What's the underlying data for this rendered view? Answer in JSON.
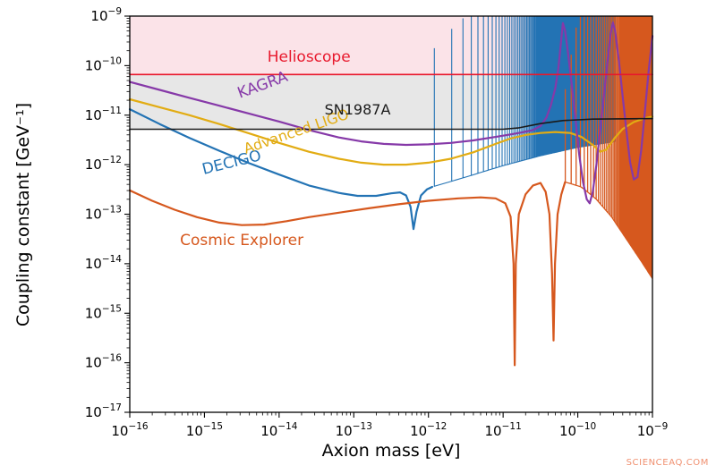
{
  "watermark": "SCIENCEAQ.COM",
  "chart_data": {
    "type": "line",
    "title": "",
    "xlabel": "Axion mass [eV]",
    "ylabel": "Coupling constant [GeV⁻¹]",
    "x_scale": "log",
    "y_scale": "log",
    "x_log_range": [
      -16,
      -9
    ],
    "y_log_range": [
      -17,
      -9
    ],
    "x_tick_exponents": [
      -16,
      -15,
      -14,
      -13,
      -12,
      -11,
      -10,
      -9
    ],
    "y_tick_exponents": [
      -9,
      -10,
      -11,
      -12,
      -13,
      -14,
      -15,
      -16,
      -17
    ],
    "grid": false,
    "legend_position": "inline-labels",
    "regions": [
      {
        "id": "helioscope-excluded",
        "fill": "#fbe3e8",
        "top_ly": -9,
        "bottom_ly": -10.18
      },
      {
        "id": "sn1987a-excluded",
        "fill": "#e7e7e7",
        "top_ly": -10.18,
        "bottom_ref": "sn1987a"
      }
    ],
    "series": [
      {
        "id": "decigo",
        "name": "DECIGO",
        "color": "#2373b4",
        "width": 2.2,
        "label": {
          "text": "DECIGO",
          "lx": -14.62,
          "ly": -12.05,
          "rotate": -14,
          "size": 17
        },
        "points": [
          [
            -16,
            -10.88
          ],
          [
            -15.6,
            -11.18
          ],
          [
            -15.2,
            -11.46
          ],
          [
            -14.8,
            -11.72
          ],
          [
            -14.4,
            -11.97
          ],
          [
            -14.0,
            -12.2
          ],
          [
            -13.6,
            -12.42
          ],
          [
            -13.2,
            -12.57
          ],
          [
            -12.95,
            -12.63
          ],
          [
            -12.7,
            -12.63
          ],
          [
            -12.5,
            -12.58
          ],
          [
            -12.38,
            -12.56
          ],
          [
            -12.3,
            -12.62
          ],
          [
            -12.24,
            -12.85
          ],
          [
            -12.2,
            -13.3
          ],
          [
            -12.16,
            -12.95
          ],
          [
            -12.1,
            -12.62
          ],
          [
            -12.02,
            -12.5
          ],
          [
            -11.95,
            -12.45
          ]
        ],
        "oscillation": {
          "m_start": 1.2e-12,
          "dm": 8.5e-13,
          "m_end": 3.2e-10,
          "width": 1.1,
          "bottom_env": [
            [
              -11.95,
              -12.45
            ],
            [
              -11.5,
              -12.25
            ],
            [
              -11.0,
              -12.02
            ],
            [
              -10.5,
              -11.82
            ],
            [
              -10.0,
              -11.65
            ],
            [
              -9.4,
              -11.5
            ]
          ],
          "top_env": [
            [
              -11.95,
              -9.7
            ],
            [
              -11.75,
              -9.35
            ],
            [
              -11.55,
              -9.05
            ],
            [
              -11.4,
              -9.0
            ],
            [
              -9.0,
              -9.0
            ]
          ]
        }
      },
      {
        "id": "cosmic-explorer",
        "name": "Cosmic Explorer",
        "color": "#d6581e",
        "width": 2.2,
        "label": {
          "text": "Cosmic Explorer",
          "lx": -14.5,
          "ly": -13.62,
          "rotate": 0,
          "size": 17
        },
        "points": [
          [
            -16,
            -12.52
          ],
          [
            -15.7,
            -12.73
          ],
          [
            -15.4,
            -12.91
          ],
          [
            -15.1,
            -13.06
          ],
          [
            -14.8,
            -13.17
          ],
          [
            -14.5,
            -13.22
          ],
          [
            -14.2,
            -13.21
          ],
          [
            -13.9,
            -13.14
          ],
          [
            -13.6,
            -13.06
          ],
          [
            -13.2,
            -12.97
          ],
          [
            -12.8,
            -12.88
          ],
          [
            -12.4,
            -12.8
          ],
          [
            -12.0,
            -12.73
          ],
          [
            -11.6,
            -12.68
          ],
          [
            -11.3,
            -12.66
          ],
          [
            -11.1,
            -12.68
          ],
          [
            -10.97,
            -12.78
          ],
          [
            -10.9,
            -13.05
          ],
          [
            -10.86,
            -14.0
          ],
          [
            -10.845,
            -16.05
          ],
          [
            -10.83,
            -14.0
          ],
          [
            -10.79,
            -13.0
          ],
          [
            -10.7,
            -12.6
          ],
          [
            -10.6,
            -12.42
          ],
          [
            -10.5,
            -12.37
          ],
          [
            -10.43,
            -12.55
          ],
          [
            -10.38,
            -13.0
          ],
          [
            -10.345,
            -14.2
          ],
          [
            -10.325,
            -15.55
          ],
          [
            -10.305,
            -14.0
          ],
          [
            -10.27,
            -13.0
          ],
          [
            -10.22,
            -12.6
          ],
          [
            -10.17,
            -12.35
          ]
        ],
        "oscillation": {
          "m_start": 6.8e-11,
          "dm": 1.35e-11,
          "m_end": 9.9e-10,
          "width": 1.3,
          "bottom_env": [
            [
              -10.17,
              -12.35
            ],
            [
              -9.95,
              -12.45
            ],
            [
              -9.75,
              -12.7
            ],
            [
              -9.55,
              -13.05
            ],
            [
              -9.35,
              -13.5
            ],
            [
              -9.15,
              -13.95
            ],
            [
              -9.0,
              -14.3
            ]
          ],
          "top_env": [
            [
              -10.17,
              -10.5
            ],
            [
              -10.08,
              -9.7
            ],
            [
              -10.0,
              -9.05
            ],
            [
              -9.95,
              -9.0
            ],
            [
              -9.0,
              -9.0
            ]
          ]
        }
      },
      {
        "id": "advanced-ligo",
        "name": "Advanced LIGO",
        "color": "#e2ac13",
        "width": 2.2,
        "label": {
          "text": "Advanced LIGO",
          "lx": -13.75,
          "ly": -11.42,
          "rotate": -19,
          "size": 16
        },
        "points": [
          [
            -16,
            -10.68
          ],
          [
            -15.6,
            -10.84
          ],
          [
            -15.2,
            -11.0
          ],
          [
            -14.8,
            -11.18
          ],
          [
            -14.4,
            -11.37
          ],
          [
            -14.0,
            -11.56
          ],
          [
            -13.6,
            -11.74
          ],
          [
            -13.2,
            -11.88
          ],
          [
            -12.9,
            -11.96
          ],
          [
            -12.6,
            -12.0
          ],
          [
            -12.3,
            -12.0
          ],
          [
            -12.0,
            -11.96
          ],
          [
            -11.7,
            -11.88
          ],
          [
            -11.4,
            -11.75
          ],
          [
            -11.1,
            -11.58
          ],
          [
            -10.9,
            -11.47
          ],
          [
            -10.7,
            -11.4
          ],
          [
            -10.5,
            -11.36
          ],
          [
            -10.3,
            -11.34
          ],
          [
            -10.1,
            -11.36
          ],
          [
            -9.95,
            -11.44
          ],
          [
            -9.8,
            -11.6
          ],
          [
            -9.7,
            -11.74
          ],
          [
            -9.62,
            -11.7
          ],
          [
            -9.5,
            -11.45
          ],
          [
            -9.4,
            -11.28
          ],
          [
            -9.25,
            -11.14
          ],
          [
            -9.1,
            -11.06
          ],
          [
            -9.0,
            -11.03
          ]
        ]
      },
      {
        "id": "kagra",
        "name": "KAGRA",
        "color": "#8639a8",
        "width": 2.2,
        "label": {
          "text": "KAGRA",
          "lx": -14.2,
          "ly": -10.48,
          "rotate": -20,
          "size": 17
        },
        "points": [
          [
            -16,
            -10.33
          ],
          [
            -15.6,
            -10.49
          ],
          [
            -15.2,
            -10.65
          ],
          [
            -14.8,
            -10.81
          ],
          [
            -14.4,
            -10.97
          ],
          [
            -14.0,
            -11.13
          ],
          [
            -13.6,
            -11.3
          ],
          [
            -13.2,
            -11.45
          ],
          [
            -12.9,
            -11.53
          ],
          [
            -12.6,
            -11.58
          ],
          [
            -12.3,
            -11.6
          ],
          [
            -12.0,
            -11.59
          ],
          [
            -11.7,
            -11.56
          ],
          [
            -11.4,
            -11.51
          ],
          [
            -11.1,
            -11.44
          ],
          [
            -10.9,
            -11.39
          ],
          [
            -10.75,
            -11.35
          ],
          [
            -10.6,
            -11.3
          ],
          [
            -10.5,
            -11.22
          ],
          [
            -10.42,
            -11.05
          ],
          [
            -10.36,
            -10.8
          ],
          [
            -10.3,
            -10.45
          ],
          [
            -10.26,
            -10.05
          ],
          [
            -10.23,
            -9.6
          ],
          [
            -10.2,
            -9.14
          ],
          [
            -10.17,
            -9.3
          ],
          [
            -10.13,
            -9.75
          ],
          [
            -10.08,
            -10.4
          ],
          [
            -10.03,
            -11.1
          ],
          [
            -9.98,
            -11.8
          ],
          [
            -9.93,
            -12.35
          ],
          [
            -9.88,
            -12.7
          ],
          [
            -9.84,
            -12.78
          ],
          [
            -9.8,
            -12.55
          ],
          [
            -9.75,
            -12.0
          ],
          [
            -9.7,
            -11.3
          ],
          [
            -9.65,
            -10.6
          ],
          [
            -9.6,
            -9.9
          ],
          [
            -9.56,
            -9.35
          ],
          [
            -9.53,
            -9.13
          ],
          [
            -9.5,
            -9.3
          ],
          [
            -9.45,
            -9.9
          ],
          [
            -9.4,
            -10.6
          ],
          [
            -9.35,
            -11.3
          ],
          [
            -9.3,
            -11.95
          ],
          [
            -9.25,
            -12.3
          ],
          [
            -9.2,
            -12.25
          ],
          [
            -9.15,
            -11.7
          ],
          [
            -9.1,
            -10.9
          ],
          [
            -9.05,
            -10.1
          ],
          [
            -9.0,
            -9.4
          ]
        ]
      },
      {
        "id": "sn1987a",
        "name": "SN1987A",
        "color": "#1a1a1a",
        "width": 1.6,
        "label": {
          "text": "SN1987A",
          "lx": -12.95,
          "ly": -10.99,
          "rotate": 0,
          "size": 16,
          "color": "#1a1a1a"
        },
        "points": [
          [
            -16,
            -11.285
          ],
          [
            -11,
            -11.285
          ],
          [
            -10.8,
            -11.26
          ],
          [
            -10.5,
            -11.17
          ],
          [
            -10.2,
            -11.11
          ],
          [
            -9.8,
            -11.08
          ],
          [
            -9.0,
            -11.07
          ]
        ]
      },
      {
        "id": "helioscope",
        "name": "Helioscope",
        "color": "#e8182c",
        "width": 1.6,
        "label": {
          "text": "Helioscope",
          "lx": -13.6,
          "ly": -9.92,
          "rotate": 0,
          "size": 17
        },
        "points": [
          [
            -16,
            -10.18
          ],
          [
            -9.0,
            -10.18
          ]
        ]
      }
    ]
  }
}
